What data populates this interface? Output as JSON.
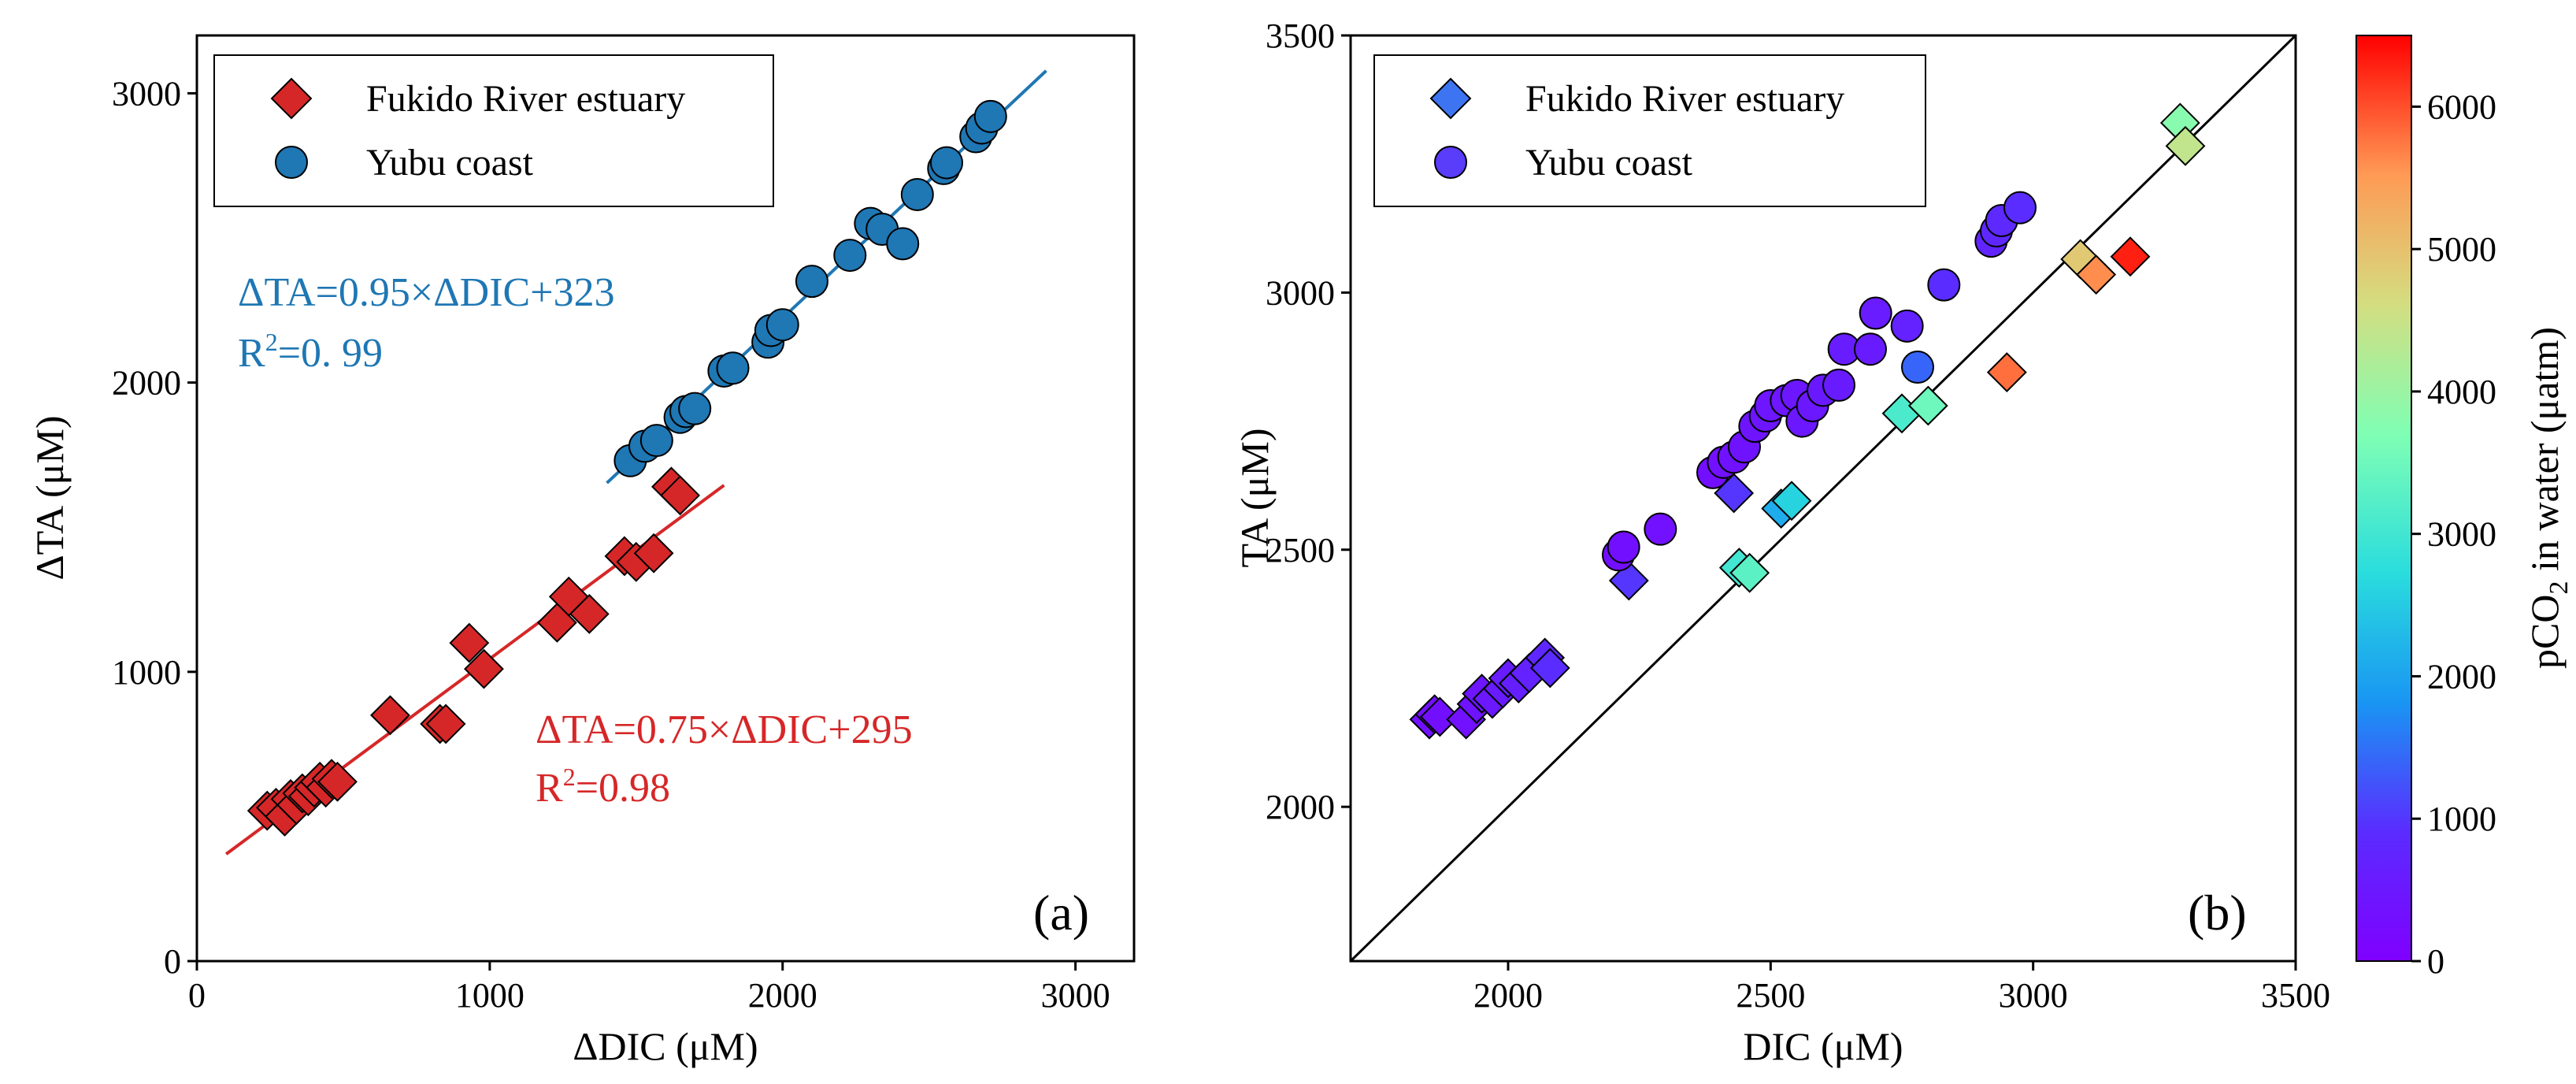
{
  "chart_data": [
    {
      "type": "scatter",
      "panel_label": "(a)",
      "xlabel": "ΔDIC (μM)",
      "ylabel": "ΔTA (μM)",
      "xlim": [
        0,
        3200
      ],
      "ylim": [
        0,
        3200
      ],
      "xticks": [
        "0",
        "1000",
        "2000",
        "3000"
      ],
      "yticks": [
        "0",
        "1000",
        "2000",
        "3000"
      ],
      "legend": {
        "position": "top-left",
        "entries": [
          "Fukido River estuary",
          "Yubu coast"
        ]
      },
      "series": [
        {
          "name": "Fukido River estuary",
          "marker": "diamond",
          "color": "#d62728",
          "x": [
            240,
            270,
            300,
            320,
            340,
            360,
            380,
            400,
            420,
            440,
            460,
            480,
            660,
            830,
            850,
            930,
            980,
            1230,
            1270,
            1340,
            1460,
            1500,
            1560,
            1620,
            1650
          ],
          "y": [
            520,
            530,
            500,
            560,
            540,
            580,
            570,
            600,
            620,
            600,
            630,
            620,
            850,
            820,
            820,
            1100,
            1010,
            1170,
            1260,
            1200,
            1400,
            1380,
            1410,
            1640,
            1610
          ],
          "fit": {
            "x": [
              100,
              1800
            ],
            "y": [
              370,
              1645
            ]
          }
        },
        {
          "name": "Yubu coast",
          "marker": "circle",
          "color": "#1f77b4",
          "x": [
            1480,
            1530,
            1570,
            1650,
            1670,
            1700,
            1800,
            1830,
            1950,
            1960,
            2000,
            2100,
            2230,
            2300,
            2340,
            2410,
            2460,
            2550,
            2560,
            2660,
            2680,
            2710
          ],
          "y": [
            1730,
            1780,
            1800,
            1880,
            1900,
            1910,
            2040,
            2050,
            2140,
            2180,
            2200,
            2350,
            2440,
            2550,
            2530,
            2480,
            2650,
            2740,
            2760,
            2850,
            2880,
            2920
          ],
          "fit": {
            "x": [
              1400,
              2900
            ],
            "y": [
              1653,
              3078
            ]
          }
        }
      ],
      "annotations": [
        {
          "text": "ΔTA=0.95×ΔDIC+323",
          "color": "#1f77b4"
        },
        {
          "text": "R",
          "sup": "2",
          "tail": "=0. 99",
          "color": "#1f77b4"
        },
        {
          "text": "ΔTA=0.75×ΔDIC+295",
          "color": "#d62728"
        },
        {
          "text": "R",
          "sup": "2",
          "tail": "=0.98",
          "color": "#d62728"
        }
      ]
    },
    {
      "type": "scatter",
      "panel_label": "(b)",
      "xlabel": "DIC (μM)",
      "ylabel": "TA (μM)",
      "xlim": [
        1700,
        3500
      ],
      "ylim": [
        1700,
        3500
      ],
      "xticks": [
        "2000",
        "2500",
        "3000",
        "3500"
      ],
      "yticks": [
        "2000",
        "2500",
        "3000",
        "3500"
      ],
      "reference_line": "1:1",
      "legend": {
        "position": "top-left",
        "entries": [
          "Fukido River estuary",
          "Yubu coast"
        ]
      },
      "colorbar": {
        "label": "pCO",
        "label_sub": "2",
        "label_tail": " in water (μatm)",
        "range": [
          0,
          6500
        ],
        "ticks": [
          "0",
          "1000",
          "2000",
          "3000",
          "4000",
          "5000",
          "6000"
        ]
      },
      "series": [
        {
          "name": "Fukido River estuary",
          "marker": "diamond",
          "x": [
            1850,
            1860,
            1870,
            1920,
            1940,
            1950,
            1970,
            1990,
            2000,
            2020,
            2040,
            2070,
            2080,
            2230,
            2430,
            2440,
            2460,
            2520,
            2540,
            2750,
            2800,
            2950,
            3090,
            3120,
            3185,
            3280,
            3290
          ],
          "y": [
            2170,
            2180,
            2175,
            2170,
            2200,
            2220,
            2210,
            2230,
            2250,
            2240,
            2260,
            2290,
            2270,
            2440,
            2610,
            2465,
            2455,
            2580,
            2595,
            2765,
            2780,
            2845,
            3065,
            3035,
            3070,
            3330,
            3285
          ],
          "pco2": [
            300,
            320,
            310,
            350,
            400,
            450,
            500,
            550,
            600,
            650,
            700,
            800,
            900,
            1000,
            1000,
            3000,
            3300,
            2100,
            2600,
            3100,
            3500,
            5800,
            4900,
            5600,
            6300,
            3800,
            4400
          ]
        },
        {
          "name": "Yubu coast",
          "marker": "circle",
          "x": [
            2210,
            2220,
            2290,
            2390,
            2410,
            2430,
            2450,
            2470,
            2490,
            2500,
            2530,
            2550,
            2560,
            2580,
            2600,
            2630,
            2640,
            2690,
            2700,
            2760,
            2780,
            2830,
            2920,
            2930,
            2940,
            2975
          ],
          "y": [
            2490,
            2505,
            2540,
            2650,
            2670,
            2680,
            2700,
            2740,
            2760,
            2780,
            2790,
            2800,
            2750,
            2780,
            2810,
            2820,
            2890,
            2890,
            2960,
            2935,
            2855,
            3015,
            3100,
            3120,
            3140,
            3165
          ],
          "pco2": [
            300,
            320,
            350,
            300,
            350,
            380,
            400,
            420,
            440,
            450,
            460,
            480,
            500,
            500,
            520,
            550,
            600,
            560,
            570,
            700,
            1400,
            900,
            750,
            800,
            850,
            900
          ]
        }
      ]
    }
  ]
}
